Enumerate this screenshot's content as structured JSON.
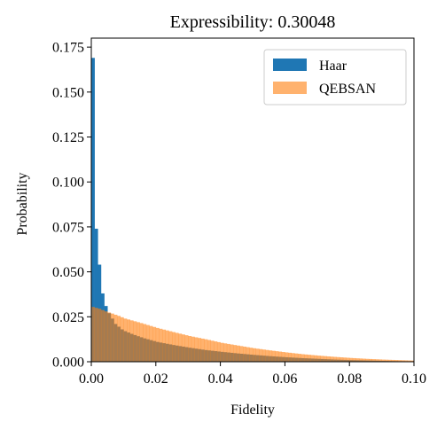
{
  "chart_data": {
    "type": "bar",
    "title": "Expressibility: 0.30048",
    "xlabel": "Fidelity",
    "ylabel": "Probability",
    "xlim": [
      0.0,
      0.1
    ],
    "ylim": [
      0.0,
      0.18
    ],
    "xticks": [
      "0.00",
      "0.02",
      "0.04",
      "0.06",
      "0.08",
      "0.10"
    ],
    "yticks": [
      "0.000",
      "0.025",
      "0.050",
      "0.075",
      "0.100",
      "0.125",
      "0.150",
      "0.175"
    ],
    "grid": false,
    "legend_position": "top-right",
    "bin_width": 0.001,
    "series": [
      {
        "name": "Haar",
        "color": "#1f77b4",
        "opacity": 1.0,
        "x": [
          0.0,
          0.001,
          0.002,
          0.003,
          0.004,
          0.005,
          0.006,
          0.007,
          0.008,
          0.009,
          0.01,
          0.012,
          0.014,
          0.016,
          0.018,
          0.02,
          0.025,
          0.03,
          0.035,
          0.04,
          0.045,
          0.05,
          0.055,
          0.06,
          0.065,
          0.07,
          0.075,
          0.08,
          0.085,
          0.09,
          0.095,
          0.1
        ],
        "values": [
          0.169,
          0.074,
          0.054,
          0.038,
          0.031,
          0.027,
          0.024,
          0.021,
          0.0195,
          0.018,
          0.017,
          0.0155,
          0.0142,
          0.013,
          0.012,
          0.011,
          0.0093,
          0.0078,
          0.0065,
          0.0055,
          0.0046,
          0.0038,
          0.0031,
          0.0025,
          0.002,
          0.0016,
          0.0012,
          0.0009,
          0.0007,
          0.0005,
          0.0003,
          0.0002
        ]
      },
      {
        "name": "QEBSAN",
        "color": "#ff7f0e",
        "opacity": 0.6,
        "x": [
          0.0,
          0.002,
          0.004,
          0.006,
          0.008,
          0.01,
          0.015,
          0.02,
          0.025,
          0.03,
          0.035,
          0.04,
          0.045,
          0.05,
          0.055,
          0.06,
          0.065,
          0.07,
          0.075,
          0.08,
          0.085,
          0.09,
          0.095,
          0.1
        ],
        "values": [
          0.0305,
          0.0295,
          0.028,
          0.0268,
          0.0255,
          0.024,
          0.0215,
          0.0188,
          0.0165,
          0.0143,
          0.0125,
          0.0105,
          0.009,
          0.0075,
          0.0063,
          0.0052,
          0.0042,
          0.0034,
          0.0027,
          0.0021,
          0.0016,
          0.0012,
          0.0009,
          0.0006
        ]
      }
    ]
  }
}
